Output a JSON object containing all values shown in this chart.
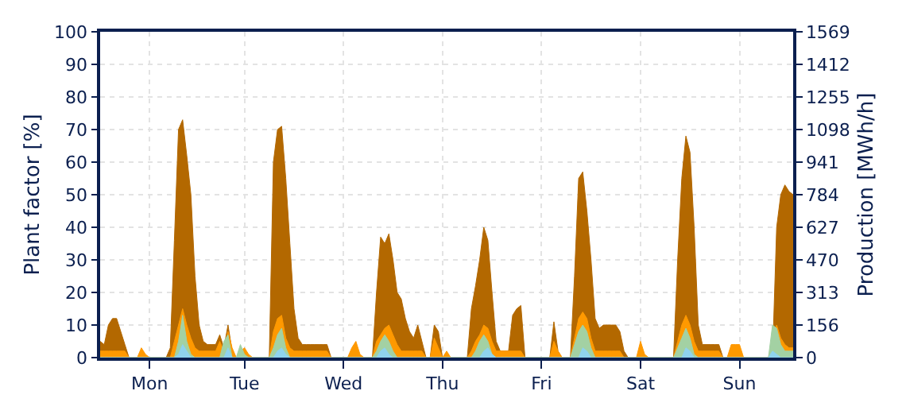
{
  "chart_data": {
    "type": "area",
    "ylabel": "Plant factor [%]",
    "y2label": "Production [MWh/h]",
    "categories": [
      null,
      null,
      null,
      null,
      null,
      null,
      null,
      null,
      null,
      null,
      null,
      null,
      "Mon",
      null,
      null,
      null,
      null,
      null,
      null,
      null,
      null,
      null,
      null,
      null,
      null,
      null,
      null,
      null,
      null,
      null,
      null,
      null,
      null,
      null,
      null,
      "Tue",
      null,
      null,
      null,
      null,
      null,
      null,
      null,
      null,
      null,
      null,
      null,
      null,
      null,
      null,
      null,
      null,
      null,
      null,
      null,
      null,
      null,
      null,
      null,
      "Wed",
      null,
      null,
      null,
      null,
      null,
      null,
      null,
      null,
      null,
      null,
      null,
      null,
      null,
      null,
      null,
      null,
      null,
      null,
      null,
      null,
      null,
      null,
      null,
      "Thu",
      null,
      null,
      null,
      null,
      null,
      null,
      null,
      null,
      null,
      null,
      null,
      null,
      null,
      null,
      null,
      null,
      null,
      null,
      null,
      null,
      null,
      null,
      null,
      "Fri",
      null,
      null,
      null,
      null,
      null,
      null,
      null,
      null,
      null,
      null,
      null,
      null,
      null,
      null,
      null,
      null,
      null,
      null,
      null,
      null,
      null,
      null,
      null,
      "Sat",
      null,
      null,
      null,
      null,
      null,
      null,
      null,
      null,
      null,
      null,
      null,
      null,
      null,
      null,
      null,
      null,
      null,
      null,
      null,
      null,
      null,
      null,
      null,
      "Sun",
      null,
      null,
      null,
      null,
      null,
      null,
      null,
      null,
      null,
      null,
      null,
      null,
      null
    ],
    "ylim": [
      0,
      100
    ],
    "yticks": [
      0,
      10,
      20,
      30,
      40,
      50,
      60,
      70,
      80,
      90,
      100
    ],
    "y2lim": [
      0,
      1569
    ],
    "y2ticks": [
      0,
      156,
      313,
      470,
      627,
      784,
      941,
      1098,
      1255,
      1412,
      1569
    ],
    "grid": true,
    "series": [
      {
        "color": "#b36800",
        "values": [
          5,
          4,
          10,
          12,
          12,
          8,
          4,
          0,
          0,
          0,
          0,
          0,
          0,
          0,
          0,
          0,
          0,
          3,
          36,
          70,
          73,
          62,
          50,
          25,
          10,
          5,
          4,
          4,
          4,
          7,
          3,
          10,
          2,
          0,
          0,
          0,
          0,
          0,
          0,
          0,
          0,
          0,
          60,
          70,
          71,
          55,
          35,
          15,
          6,
          4,
          4,
          4,
          4,
          4,
          4,
          4,
          0,
          0,
          0,
          0,
          0,
          0,
          0,
          0,
          0,
          0,
          0,
          20,
          37,
          35,
          38,
          30,
          20,
          18,
          12,
          8,
          6,
          10,
          5,
          0,
          0,
          10,
          8,
          0,
          0,
          0,
          0,
          0,
          0,
          0,
          15,
          22,
          30,
          40,
          36,
          20,
          5,
          2,
          2,
          2,
          13,
          15,
          16,
          0,
          0,
          0,
          0,
          0,
          0,
          0,
          11,
          2,
          0,
          0,
          0,
          25,
          55,
          57,
          45,
          30,
          12,
          9,
          10,
          10,
          10,
          10,
          8,
          2,
          0,
          0,
          0,
          0,
          0,
          0,
          0,
          0,
          0,
          0,
          0,
          0,
          30,
          55,
          68,
          63,
          40,
          10,
          4,
          4,
          4,
          4,
          4,
          0,
          0,
          0,
          0,
          0,
          0,
          0,
          0,
          0,
          0,
          0,
          0,
          0,
          40,
          50,
          53,
          51,
          50
        ]
      },
      {
        "color": "#ff9900",
        "values": [
          2,
          2,
          2,
          2,
          2,
          2,
          2,
          0,
          0,
          0,
          3,
          1,
          0,
          0,
          0,
          0,
          0,
          0,
          5,
          10,
          15,
          10,
          6,
          3,
          2,
          2,
          2,
          2,
          2,
          5,
          2,
          8,
          3,
          0,
          2,
          3,
          1,
          0,
          0,
          0,
          0,
          0,
          8,
          12,
          13,
          6,
          3,
          2,
          2,
          2,
          2,
          2,
          2,
          2,
          2,
          2,
          0,
          0,
          0,
          0,
          0,
          3,
          5,
          1,
          0,
          0,
          0,
          5,
          7,
          9,
          10,
          7,
          4,
          2,
          2,
          2,
          2,
          2,
          2,
          0,
          0,
          6,
          3,
          0,
          2,
          0,
          0,
          0,
          0,
          0,
          2,
          5,
          7,
          10,
          9,
          5,
          2,
          2,
          2,
          2,
          2,
          2,
          2,
          0,
          0,
          0,
          0,
          0,
          0,
          0,
          5,
          2,
          0,
          0,
          0,
          6,
          12,
          14,
          12,
          6,
          2,
          2,
          2,
          2,
          2,
          2,
          2,
          0,
          0,
          0,
          0,
          5,
          1,
          0,
          0,
          0,
          0,
          0,
          0,
          0,
          5,
          10,
          13,
          10,
          5,
          2,
          2,
          2,
          2,
          2,
          2,
          0,
          0,
          4,
          4,
          4,
          0,
          0,
          0,
          0,
          0,
          0,
          0,
          5,
          10,
          6,
          4,
          3,
          3
        ]
      },
      {
        "color": "#a3d1a3",
        "values": [
          0,
          0,
          0,
          0,
          0,
          0,
          0,
          0,
          0,
          0,
          0,
          0,
          0,
          0,
          0,
          0,
          0,
          0,
          0,
          5,
          13,
          5,
          1,
          0,
          0,
          0,
          0,
          0,
          0,
          0,
          5,
          7,
          0,
          0,
          4,
          1,
          0,
          0,
          0,
          0,
          0,
          0,
          3,
          7,
          9,
          3,
          0,
          0,
          0,
          0,
          0,
          0,
          0,
          0,
          0,
          0,
          0,
          0,
          0,
          0,
          0,
          0,
          0,
          0,
          0,
          0,
          0,
          2,
          5,
          7,
          5,
          2,
          0,
          0,
          0,
          0,
          0,
          0,
          0,
          0,
          0,
          0,
          0,
          0,
          0,
          0,
          0,
          0,
          0,
          0,
          0,
          2,
          5,
          7,
          5,
          1,
          0,
          0,
          0,
          0,
          0,
          0,
          0,
          0,
          0,
          0,
          0,
          0,
          0,
          0,
          0,
          0,
          0,
          0,
          0,
          4,
          8,
          10,
          8,
          3,
          0,
          0,
          0,
          0,
          0,
          0,
          0,
          0,
          0,
          0,
          0,
          0,
          0,
          0,
          0,
          0,
          0,
          0,
          0,
          0,
          3,
          6,
          9,
          6,
          1,
          0,
          0,
          0,
          0,
          0,
          0,
          0,
          0,
          0,
          0,
          0,
          0,
          0,
          0,
          0,
          0,
          0,
          0,
          10,
          9,
          4,
          2,
          2,
          2
        ]
      },
      {
        "color": "#8fd3ee",
        "values": [
          0,
          0,
          0,
          0,
          0,
          0,
          0,
          0,
          0,
          0,
          0,
          0,
          0,
          0,
          0,
          0,
          0,
          0,
          0,
          1,
          4,
          2,
          0,
          0,
          0,
          0,
          0,
          0,
          0,
          0,
          0,
          3,
          0,
          0,
          0,
          0,
          0,
          0,
          0,
          0,
          0,
          0,
          0,
          2,
          3,
          1,
          0,
          0,
          0,
          0,
          0,
          0,
          0,
          0,
          0,
          0,
          0,
          0,
          0,
          0,
          0,
          0,
          0,
          0,
          0,
          0,
          0,
          0,
          2,
          3,
          1,
          0,
          0,
          0,
          0,
          0,
          0,
          0,
          0,
          0,
          0,
          0,
          0,
          0,
          0,
          0,
          0,
          0,
          0,
          0,
          0,
          0,
          0,
          2,
          3,
          1,
          0,
          0,
          0,
          0,
          0,
          0,
          0,
          0,
          0,
          0,
          0,
          0,
          0,
          0,
          0,
          0,
          0,
          0,
          0,
          0,
          0,
          3,
          2,
          0,
          0,
          0,
          0,
          0,
          0,
          0,
          0,
          0,
          0,
          0,
          0,
          0,
          0,
          0,
          0,
          0,
          0,
          0,
          0,
          0,
          0,
          0,
          3,
          2,
          0,
          0,
          0,
          0,
          0,
          0,
          0,
          0,
          0,
          0,
          0,
          0,
          0,
          0,
          0,
          0,
          0,
          0,
          0,
          2,
          1,
          0,
          0,
          0,
          0
        ]
      }
    ]
  }
}
